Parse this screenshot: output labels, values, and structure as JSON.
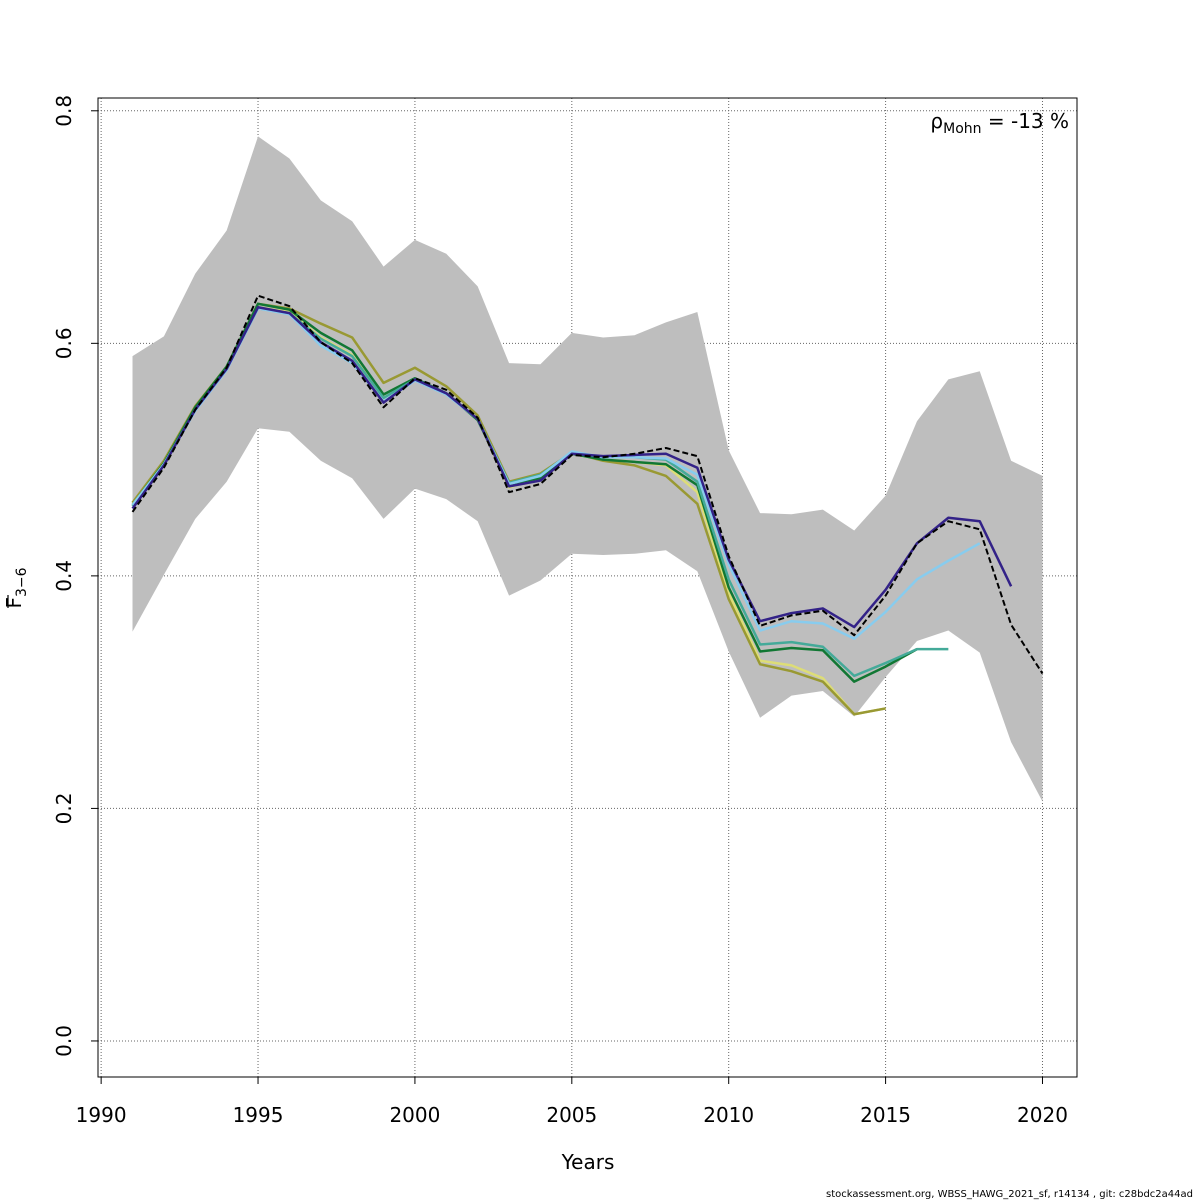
{
  "chart_data": {
    "type": "line",
    "title": "",
    "xlabel": "Years",
    "ylabel": {
      "base": "F",
      "sub": "3−6"
    },
    "xlim": [
      1989.9,
      2021.1
    ],
    "ylim": [
      -0.031,
      0.811
    ],
    "x_ticks": [
      1990,
      1995,
      2000,
      2005,
      2010,
      2015,
      2020
    ],
    "y_ticks": [
      0.0,
      0.2,
      0.4,
      0.6,
      0.8
    ],
    "y_tick_labels": [
      "0.0",
      "0.2",
      "0.4",
      "0.6",
      "0.8"
    ],
    "grid": true,
    "band": {
      "x": [
        1991,
        1992,
        1993,
        1994,
        1995,
        1996,
        1997,
        1998,
        1999,
        2000,
        2001,
        2002,
        2003,
        2004,
        2005,
        2006,
        2007,
        2008,
        2009,
        2010,
        2011,
        2012,
        2013,
        2014,
        2015,
        2016,
        2017,
        2018,
        2019,
        2020
      ],
      "upper": [
        0.589,
        0.606,
        0.66,
        0.697,
        0.778,
        0.759,
        0.723,
        0.705,
        0.666,
        0.689,
        0.677,
        0.649,
        0.583,
        0.582,
        0.609,
        0.605,
        0.607,
        0.618,
        0.627,
        0.508,
        0.454,
        0.453,
        0.457,
        0.439,
        0.469,
        0.533,
        0.569,
        0.576,
        0.499,
        0.486
      ],
      "lower": [
        0.352,
        0.401,
        0.449,
        0.481,
        0.527,
        0.524,
        0.499,
        0.484,
        0.449,
        0.475,
        0.466,
        0.447,
        0.383,
        0.396,
        0.419,
        0.418,
        0.419,
        0.422,
        0.404,
        0.335,
        0.278,
        0.297,
        0.301,
        0.279,
        0.313,
        0.344,
        0.353,
        0.334,
        0.257,
        0.206
      ],
      "color": "#bebebe"
    },
    "series": [
      {
        "color": "#dddd77",
        "dash": false,
        "x": [
          1991,
          1992,
          1993,
          1994,
          1995,
          1996,
          1997,
          1998,
          1999,
          2000,
          2001,
          2002,
          2003,
          2004,
          2005,
          2006,
          2007,
          2008,
          2009,
          2010,
          2011,
          2012,
          2013,
          2014,
          2015
        ],
        "y": [
          0.462,
          0.497,
          0.544,
          0.578,
          0.631,
          0.627,
          0.605,
          0.59,
          0.553,
          0.569,
          0.557,
          0.535,
          0.476,
          0.485,
          0.505,
          0.5,
          0.498,
          0.495,
          0.472,
          0.385,
          0.327,
          0.323,
          0.312,
          0.281,
          0.286
        ]
      },
      {
        "color": "#999933",
        "dash": false,
        "x": [
          1991,
          1992,
          1993,
          1994,
          1995,
          1996,
          1997,
          1998,
          1999,
          2000,
          2001,
          2002,
          2003,
          2004,
          2005,
          2006,
          2007,
          2008,
          2009,
          2010,
          2011,
          2012,
          2013,
          2014,
          2015
        ],
        "y": [
          0.463,
          0.499,
          0.546,
          0.58,
          0.634,
          0.63,
          0.617,
          0.605,
          0.566,
          0.579,
          0.563,
          0.538,
          0.481,
          0.488,
          0.506,
          0.499,
          0.495,
          0.486,
          0.462,
          0.38,
          0.324,
          0.318,
          0.309,
          0.281,
          0.286
        ]
      },
      {
        "color": "#117733",
        "dash": false,
        "x": [
          1991,
          1992,
          1993,
          1994,
          1995,
          1996,
          1997,
          1998,
          1999,
          2000,
          2001,
          2002,
          2003,
          2004,
          2005,
          2006,
          2007,
          2008,
          2009,
          2010,
          2011,
          2012,
          2013,
          2014,
          2015,
          2016
        ],
        "y": [
          0.461,
          0.497,
          0.545,
          0.58,
          0.634,
          0.629,
          0.609,
          0.594,
          0.556,
          0.57,
          0.557,
          0.534,
          0.479,
          0.484,
          0.505,
          0.5,
          0.498,
          0.496,
          0.478,
          0.39,
          0.335,
          0.338,
          0.336,
          0.309,
          0.322,
          0.337
        ]
      },
      {
        "color": "#44aa99",
        "dash": false,
        "x": [
          1991,
          1992,
          1993,
          1994,
          1995,
          1996,
          1997,
          1998,
          1999,
          2000,
          2001,
          2002,
          2003,
          2004,
          2005,
          2006,
          2007,
          2008,
          2009,
          2010,
          2011,
          2012,
          2013,
          2014,
          2015,
          2016,
          2017
        ],
        "y": [
          0.46,
          0.496,
          0.543,
          0.578,
          0.63,
          0.626,
          0.604,
          0.589,
          0.553,
          0.569,
          0.557,
          0.535,
          0.48,
          0.487,
          0.506,
          0.502,
          0.502,
          0.5,
          0.481,
          0.397,
          0.341,
          0.343,
          0.339,
          0.314,
          0.325,
          0.337,
          0.337
        ]
      },
      {
        "color": "#88ccee",
        "dash": false,
        "x": [
          1991,
          1992,
          1993,
          1994,
          1995,
          1996,
          1997,
          1998,
          1999,
          2000,
          2001,
          2002,
          2003,
          2004,
          2005,
          2006,
          2007,
          2008,
          2009,
          2010,
          2011,
          2012,
          2013,
          2014,
          2015,
          2016,
          2017,
          2018
        ],
        "y": [
          0.461,
          0.496,
          0.542,
          0.577,
          0.63,
          0.625,
          0.598,
          0.583,
          0.55,
          0.568,
          0.556,
          0.535,
          0.479,
          0.486,
          0.507,
          0.502,
          0.502,
          0.501,
          0.487,
          0.41,
          0.353,
          0.361,
          0.359,
          0.346,
          0.369,
          0.397,
          0.413,
          0.428
        ]
      },
      {
        "color": "#332288",
        "dash": false,
        "x": [
          1991,
          1992,
          1993,
          1994,
          1995,
          1996,
          1997,
          1998,
          1999,
          2000,
          2001,
          2002,
          2003,
          2004,
          2005,
          2006,
          2007,
          2008,
          2009,
          2010,
          2011,
          2012,
          2013,
          2014,
          2015,
          2016,
          2017,
          2018,
          2019
        ],
        "y": [
          0.458,
          0.495,
          0.543,
          0.578,
          0.631,
          0.626,
          0.601,
          0.585,
          0.549,
          0.569,
          0.557,
          0.535,
          0.477,
          0.482,
          0.505,
          0.503,
          0.504,
          0.505,
          0.493,
          0.414,
          0.361,
          0.368,
          0.372,
          0.356,
          0.388,
          0.428,
          0.45,
          0.447,
          0.391
        ]
      },
      {
        "color": "#000000",
        "dash": true,
        "x": [
          1991,
          1992,
          1993,
          1994,
          1995,
          1996,
          1997,
          1998,
          1999,
          2000,
          2001,
          2002,
          2003,
          2004,
          2005,
          2006,
          2007,
          2008,
          2009,
          2010,
          2011,
          2012,
          2013,
          2014,
          2015,
          2016,
          2017,
          2018,
          2019,
          2020
        ],
        "y": [
          0.455,
          0.493,
          0.543,
          0.579,
          0.641,
          0.632,
          0.601,
          0.583,
          0.545,
          0.57,
          0.56,
          0.536,
          0.472,
          0.479,
          0.504,
          0.502,
          0.505,
          0.51,
          0.503,
          0.417,
          0.357,
          0.366,
          0.37,
          0.349,
          0.383,
          0.428,
          0.447,
          0.44,
          0.358,
          0.316
        ]
      }
    ],
    "annotation": {
      "rho": "ρ",
      "sub": "Mohn",
      "text": " = -13 %"
    }
  },
  "footer": "stockassessment.org, WBSS_HAWG_2021_sf, r14134 , git: c28bdc2a44ad"
}
